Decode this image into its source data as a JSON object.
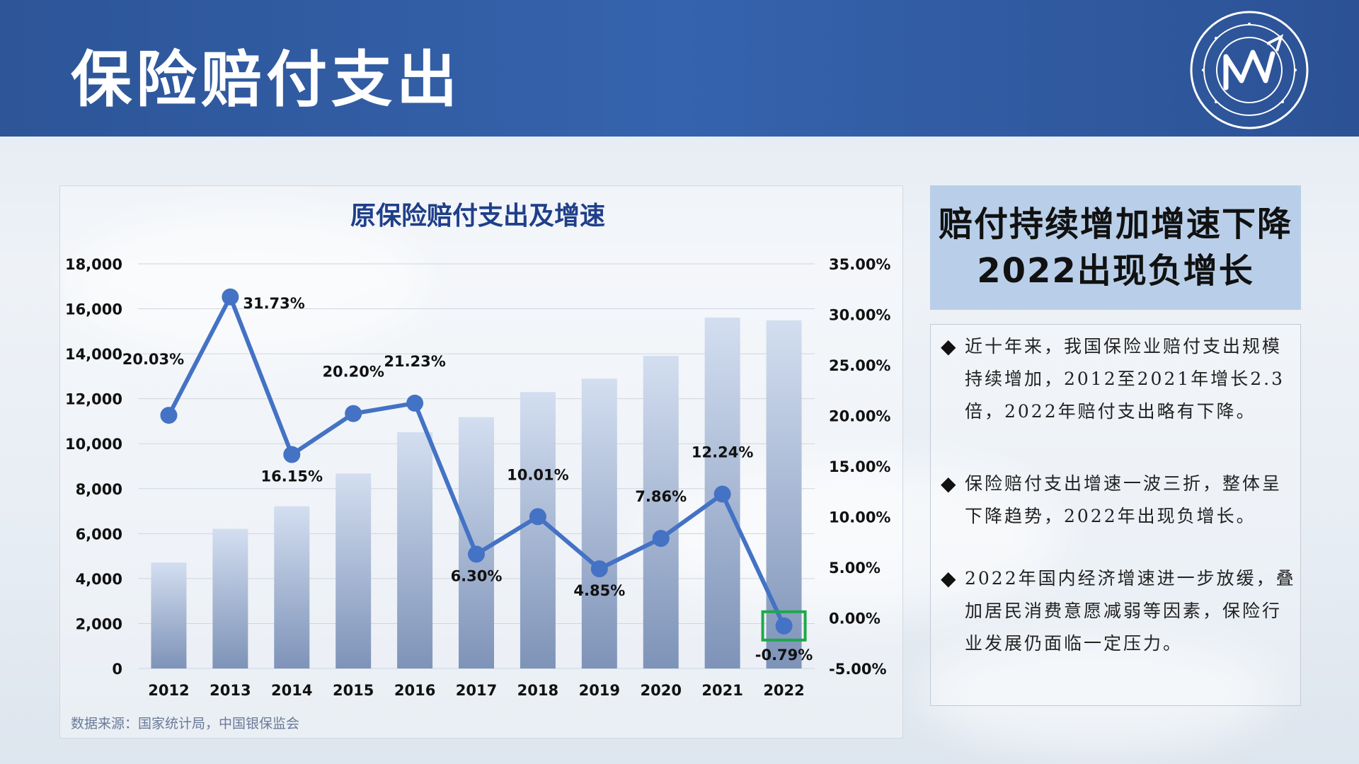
{
  "page": {
    "title": "保险赔付支出",
    "source": "数据来源：国家统计局，中国银保监会"
  },
  "summary": {
    "headline_line1": "赔付持续增加增速下降",
    "headline_line2": "2022出现负增长",
    "bullets": [
      "近十年来，我国保险业赔付支出规模持续增加，2012至2021年增长2.3倍，2022年赔付支出略有下降。",
      "保险赔付支出增速一波三折，整体呈下降趋势，2022年出现负增长。",
      "2022年国内经济增速进一步放缓，叠加居民消费意愿减弱等因素，保险行业发展仍面临一定压力。"
    ]
  },
  "colors": {
    "header": "#2f5aa0",
    "line": "#4472c4",
    "highlight": "#1ea84a",
    "bar_top": "#d3def0",
    "bar_bottom": "#7e93b8"
  },
  "chart_data": {
    "type": "bar+line",
    "title": "原保险赔付支出及增速",
    "categories": [
      "2012",
      "2013",
      "2014",
      "2015",
      "2016",
      "2017",
      "2018",
      "2019",
      "2020",
      "2021",
      "2022"
    ],
    "series": [
      {
        "kind": "bar",
        "axis": "left",
        "values": [
          4716,
          6213,
          7216,
          8674,
          10513,
          11181,
          12298,
          12894,
          13907,
          15609,
          15485
        ]
      },
      {
        "kind": "line",
        "axis": "right",
        "values": [
          20.03,
          31.73,
          16.15,
          20.2,
          21.23,
          6.3,
          10.01,
          4.85,
          7.86,
          12.24,
          -0.79
        ],
        "labels": [
          "20.03%",
          "31.73%",
          "16.15%",
          "20.20%",
          "21.23%",
          "6.30%",
          "10.01%",
          "4.85%",
          "7.86%",
          "12.24%",
          "-0.79%"
        ]
      }
    ],
    "y_left": {
      "min": 0,
      "max": 18000,
      "ticks": [
        "0",
        "2,000",
        "4,000",
        "6,000",
        "8,000",
        "10,000",
        "12,000",
        "14,000",
        "16,000",
        "18,000"
      ]
    },
    "y_right": {
      "min": -5,
      "max": 35,
      "ticks": [
        "-5.00%",
        "0.00%",
        "5.00%",
        "10.00%",
        "15.00%",
        "20.00%",
        "25.00%",
        "30.00%",
        "35.00%"
      ]
    },
    "label_positions": [
      "left",
      "right",
      "below",
      "above",
      "above",
      "below",
      "above",
      "below",
      "above",
      "above",
      "below"
    ],
    "highlight_index": 10,
    "grid": true
  }
}
